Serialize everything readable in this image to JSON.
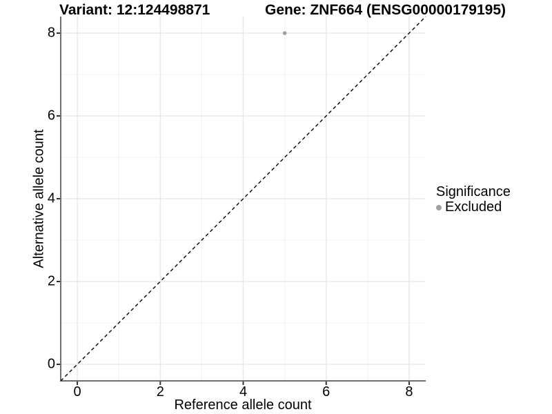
{
  "titles": {
    "variant": "Variant: 12:124498871",
    "gene": "Gene: ZNF664 (ENSG00000179195)"
  },
  "chart_data": {
    "type": "scatter",
    "title": "Variant: 12:124498871   Gene: ZNF664 (ENSG00000179195)",
    "xlabel": "Reference allele count",
    "ylabel": "Alternative allele count",
    "xlim": [
      -0.4,
      8.4
    ],
    "ylim": [
      -0.4,
      8.4
    ],
    "xticks": [
      0,
      2,
      4,
      6,
      8
    ],
    "yticks": [
      0,
      2,
      4,
      6,
      8
    ],
    "minor_xticks": [
      1,
      3,
      5,
      7
    ],
    "minor_yticks": [
      1,
      3,
      5,
      7
    ],
    "grid": true,
    "identity_line": {
      "from": [
        -0.4,
        -0.4
      ],
      "to": [
        8.4,
        8.4
      ],
      "style": "dashed",
      "color": "#000000"
    },
    "points": [
      {
        "x": 5,
        "y": 8,
        "significance": "Excluded",
        "color": "#a0a0a0"
      }
    ],
    "legend": {
      "title": "Significance",
      "position": "right",
      "items": [
        {
          "label": "Excluded",
          "color": "#a0a0a0"
        }
      ]
    }
  },
  "colors": {
    "background": "#ffffff",
    "grid_major": "#e9e9e9",
    "grid_minor": "#f4f4f4",
    "axis_line": "#6f6f6f",
    "tick_mark": "#333333",
    "text": "#000000",
    "excluded_point": "#a0a0a0"
  }
}
